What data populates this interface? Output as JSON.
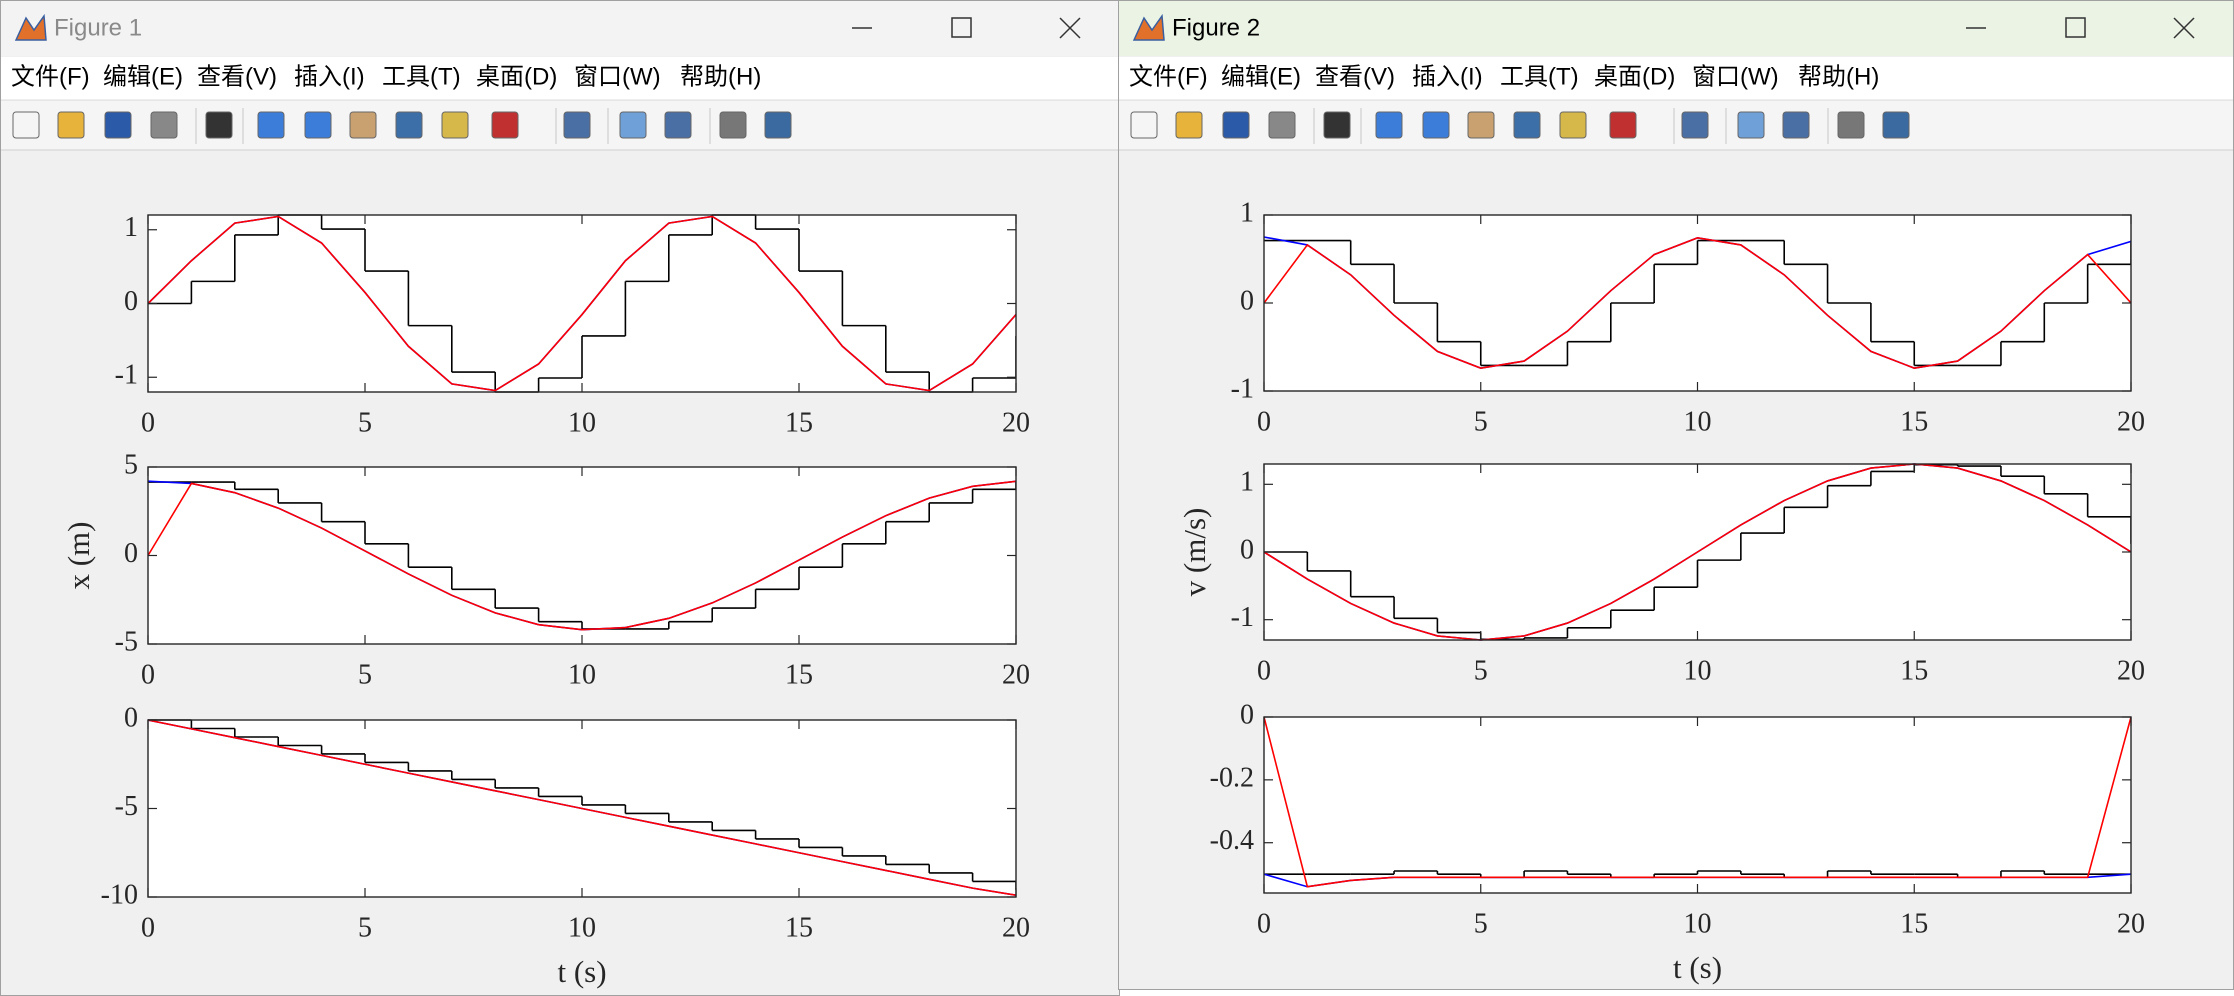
{
  "windows": [
    {
      "title": "Figure 1",
      "menu": [
        "文件(F)",
        "编辑(E)",
        "查看(V)",
        "插入(I)",
        "工具(T)",
        "桌面(D)",
        "窗口(W)",
        "帮助(H)"
      ],
      "chart_data": [
        {
          "type": "line",
          "x": [
            0,
            1,
            2,
            3,
            4,
            5,
            6,
            7,
            8,
            9,
            10,
            11,
            12,
            13,
            14,
            15,
            16,
            17,
            18,
            19,
            20
          ],
          "xlim": [
            0,
            20
          ],
          "xticks": [
            0,
            5,
            10,
            15,
            20
          ],
          "ylim": [
            -1.2,
            1.2
          ],
          "yticks": [
            -1,
            0,
            1
          ],
          "series": [
            {
              "color": "#000000",
              "drawstyle": "steps",
              "values": [
                0,
                0.3,
                0.93,
                1.2,
                1.01,
                0.44,
                -0.3,
                -0.93,
                -1.2,
                -1.01,
                -0.44,
                0.3,
                0.93,
                1.2,
                1.01,
                0.44,
                -0.3,
                -0.93,
                -1.2,
                -1.01,
                -0.44
              ]
            },
            {
              "color": "#0000ff",
              "values": [
                0,
                0.58,
                1.09,
                1.18,
                0.82,
                0.15,
                -0.58,
                -1.09,
                -1.18,
                -0.82,
                -0.15,
                0.58,
                1.09,
                1.18,
                0.82,
                0.15,
                -0.58,
                -1.09,
                -1.18,
                -0.82,
                -0.15
              ]
            },
            {
              "color": "#ff0000",
              "values": [
                0,
                0.58,
                1.09,
                1.18,
                0.82,
                0.15,
                -0.58,
                -1.09,
                -1.18,
                -0.82,
                -0.15,
                0.58,
                1.09,
                1.18,
                0.82,
                0.15,
                -0.58,
                -1.09,
                -1.18,
                -0.82,
                -0.15
              ]
            }
          ]
        },
        {
          "type": "line",
          "x": [
            0,
            1,
            2,
            3,
            4,
            5,
            6,
            7,
            8,
            9,
            10,
            11,
            12,
            13,
            14,
            15,
            16,
            17,
            18,
            19,
            20
          ],
          "xlim": [
            0,
            20
          ],
          "xticks": [
            0,
            5,
            10,
            15,
            20
          ],
          "ylim": [
            -5,
            5
          ],
          "yticks": [
            -5,
            0,
            5
          ],
          "ylabel": "x (m)",
          "series": [
            {
              "color": "#000000",
              "drawstyle": "steps",
              "values": [
                4.15,
                4.15,
                3.74,
                2.97,
                1.91,
                0.66,
                -0.66,
                -1.91,
                -2.97,
                -3.74,
                -4.15,
                -4.15,
                -3.74,
                -2.97,
                -1.91,
                -0.66,
                0.66,
                1.91,
                2.97,
                3.74,
                4.15
              ]
            },
            {
              "color": "#0000ff",
              "values": [
                4.2,
                4.07,
                3.55,
                2.68,
                1.55,
                0.26,
                -1.04,
                -2.25,
                -3.24,
                -3.91,
                -4.19,
                -4.07,
                -3.55,
                -2.68,
                -1.55,
                -0.26,
                1.04,
                2.25,
                3.24,
                3.91,
                4.19
              ]
            },
            {
              "color": "#ff0000",
              "values": [
                0,
                4.07,
                3.55,
                2.68,
                1.55,
                0.26,
                -1.04,
                -2.25,
                -3.24,
                -3.91,
                -4.19,
                -4.07,
                -3.55,
                -2.68,
                -1.55,
                -0.26,
                1.04,
                2.25,
                3.24,
                3.91,
                4.19
              ]
            }
          ]
        },
        {
          "type": "line",
          "x": [
            0,
            1,
            2,
            3,
            4,
            5,
            6,
            7,
            8,
            9,
            10,
            11,
            12,
            13,
            14,
            15,
            16,
            17,
            18,
            19,
            20
          ],
          "xlim": [
            0,
            20
          ],
          "xticks": [
            0,
            5,
            10,
            15,
            20
          ],
          "ylim": [
            -10,
            0
          ],
          "yticks": [
            -10,
            -5,
            0
          ],
          "xlabel": "t (s)",
          "series": [
            {
              "color": "#000000",
              "drawstyle": "steps",
              "values": [
                0,
                -0.48,
                -0.96,
                -1.44,
                -1.92,
                -2.4,
                -2.88,
                -3.36,
                -3.84,
                -4.32,
                -4.8,
                -5.28,
                -5.76,
                -6.24,
                -6.72,
                -7.2,
                -7.68,
                -8.16,
                -8.64,
                -9.12,
                -9.6
              ]
            },
            {
              "color": "#0000ff",
              "values": [
                0,
                -0.5,
                -1,
                -1.5,
                -2,
                -2.5,
                -3,
                -3.5,
                -4,
                -4.5,
                -5,
                -5.5,
                -6,
                -6.5,
                -7,
                -7.5,
                -8,
                -8.5,
                -9,
                -9.5,
                -9.9
              ]
            },
            {
              "color": "#ff0000",
              "values": [
                0,
                -0.5,
                -1,
                -1.5,
                -2,
                -2.5,
                -3,
                -3.5,
                -4,
                -4.5,
                -5,
                -5.5,
                -6,
                -6.5,
                -7,
                -7.5,
                -8,
                -8.5,
                -9,
                -9.5,
                -9.9
              ]
            }
          ]
        }
      ]
    },
    {
      "title": "Figure 2",
      "menu": [
        "文件(F)",
        "编辑(E)",
        "查看(V)",
        "插入(I)",
        "工具(T)",
        "桌面(D)",
        "窗口(W)",
        "帮助(H)"
      ],
      "chart_data": [
        {
          "type": "line",
          "x": [
            0,
            1,
            2,
            3,
            4,
            5,
            6,
            7,
            8,
            9,
            10,
            11,
            12,
            13,
            14,
            15,
            16,
            17,
            18,
            19,
            20
          ],
          "xlim": [
            0,
            20
          ],
          "xticks": [
            0,
            5,
            10,
            15,
            20
          ],
          "ylim": [
            -1,
            1
          ],
          "yticks": [
            -1,
            0,
            1
          ],
          "series": [
            {
              "color": "#000000",
              "drawstyle": "steps",
              "values": [
                0.71,
                0.71,
                0.44,
                0,
                -0.44,
                -0.71,
                -0.71,
                -0.44,
                0,
                0.44,
                0.71,
                0.71,
                0.44,
                0,
                -0.44,
                -0.71,
                -0.71,
                -0.44,
                0,
                0.44,
                0.71
              ]
            },
            {
              "color": "#0000ff",
              "values": [
                0.75,
                0.66,
                0.32,
                -0.14,
                -0.55,
                -0.74,
                -0.66,
                -0.32,
                0.14,
                0.55,
                0.74,
                0.66,
                0.32,
                -0.14,
                -0.55,
                -0.74,
                -0.66,
                -0.32,
                0.14,
                0.55,
                0.7
              ]
            },
            {
              "color": "#ff0000",
              "values": [
                0,
                0.66,
                0.32,
                -0.14,
                -0.55,
                -0.74,
                -0.66,
                -0.32,
                0.14,
                0.55,
                0.74,
                0.66,
                0.32,
                -0.14,
                -0.55,
                -0.74,
                -0.66,
                -0.32,
                0.14,
                0.55,
                0
              ]
            }
          ]
        },
        {
          "type": "line",
          "x": [
            0,
            1,
            2,
            3,
            4,
            5,
            6,
            7,
            8,
            9,
            10,
            11,
            12,
            13,
            14,
            15,
            16,
            17,
            18,
            19,
            20
          ],
          "xlim": [
            0,
            20
          ],
          "xticks": [
            0,
            5,
            10,
            15,
            20
          ],
          "ylim": [
            -1.3,
            1.3
          ],
          "yticks": [
            -1,
            0,
            1
          ],
          "ylabel": "v (m/s)",
          "series": [
            {
              "color": "#000000",
              "drawstyle": "steps",
              "values": [
                0,
                -0.28,
                -0.66,
                -0.98,
                -1.19,
                -1.29,
                -1.27,
                -1.12,
                -0.86,
                -0.52,
                -0.12,
                0.28,
                0.66,
                0.98,
                1.19,
                1.29,
                1.27,
                1.12,
                0.86,
                0.52,
                0.12
              ]
            },
            {
              "color": "#0000ff",
              "values": [
                0,
                -0.4,
                -0.76,
                -1.05,
                -1.24,
                -1.3,
                -1.24,
                -1.05,
                -0.76,
                -0.4,
                0,
                0.4,
                0.76,
                1.05,
                1.24,
                1.3,
                1.24,
                1.05,
                0.76,
                0.4,
                0
              ]
            },
            {
              "color": "#ff0000",
              "values": [
                0,
                -0.4,
                -0.76,
                -1.05,
                -1.24,
                -1.3,
                -1.24,
                -1.05,
                -0.76,
                -0.4,
                0,
                0.4,
                0.76,
                1.05,
                1.24,
                1.3,
                1.24,
                1.05,
                0.76,
                0.4,
                0
              ]
            }
          ]
        },
        {
          "type": "line",
          "x": [
            0,
            1,
            2,
            3,
            4,
            5,
            6,
            7,
            8,
            9,
            10,
            11,
            12,
            13,
            14,
            15,
            16,
            17,
            18,
            19,
            20
          ],
          "xlim": [
            0,
            20
          ],
          "xticks": [
            0,
            5,
            10,
            15,
            20
          ],
          "ylim": [
            -0.56,
            0
          ],
          "yticks": [
            -0.4,
            -0.2,
            0
          ],
          "xlabel": "t (s)",
          "series": [
            {
              "color": "#000000",
              "drawstyle": "steps",
              "values": [
                -0.5,
                -0.5,
                -0.5,
                -0.49,
                -0.5,
                -0.51,
                -0.49,
                -0.5,
                -0.51,
                -0.5,
                -0.49,
                -0.5,
                -0.51,
                -0.49,
                -0.5,
                -0.5,
                -0.51,
                -0.49,
                -0.5,
                -0.5,
                -0.5
              ]
            },
            {
              "color": "#0000ff",
              "values": [
                -0.5,
                -0.54,
                -0.52,
                -0.51,
                -0.51,
                -0.51,
                -0.51,
                -0.51,
                -0.51,
                -0.51,
                -0.51,
                -0.51,
                -0.51,
                -0.51,
                -0.51,
                -0.51,
                -0.51,
                -0.51,
                -0.51,
                -0.51,
                -0.5
              ]
            },
            {
              "color": "#ff0000",
              "values": [
                0,
                -0.54,
                -0.52,
                -0.51,
                -0.51,
                -0.51,
                -0.51,
                -0.51,
                -0.51,
                -0.51,
                -0.51,
                -0.51,
                -0.51,
                -0.51,
                -0.51,
                -0.51,
                -0.51,
                -0.51,
                -0.51,
                -0.51,
                0
              ]
            }
          ]
        }
      ]
    }
  ]
}
